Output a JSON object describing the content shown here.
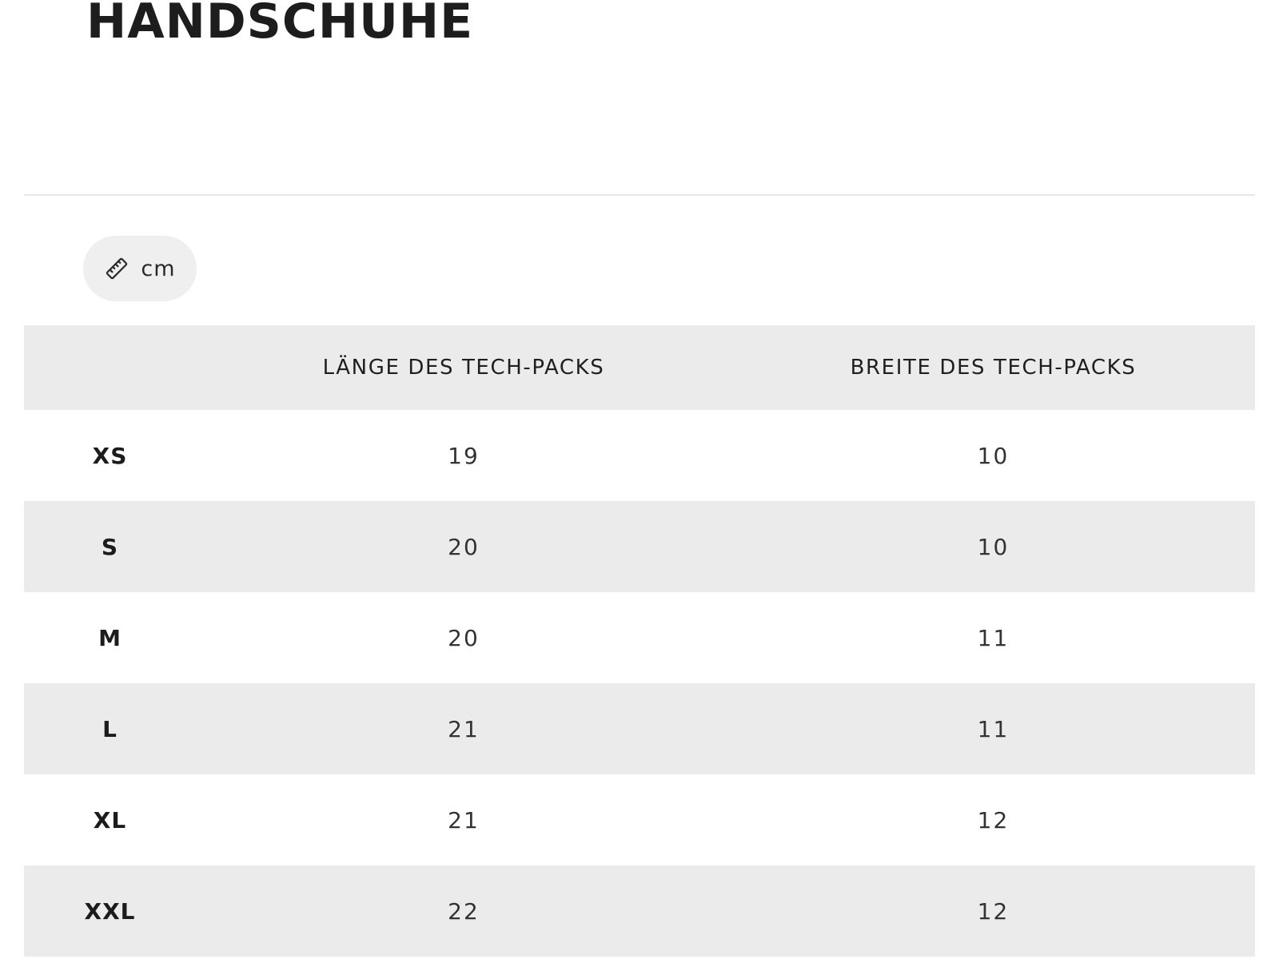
{
  "page": {
    "title": "HANDSCHUHE"
  },
  "unit_toggle": {
    "icon": "ruler-icon",
    "label": "cm"
  },
  "size_table": {
    "headers": [
      "",
      "LÄNGE DES TECH-PACKS",
      "BREITE DES TECH-PACKS"
    ],
    "rows": [
      {
        "size": "XS",
        "length": "19",
        "width": "10"
      },
      {
        "size": "S",
        "length": "20",
        "width": "10"
      },
      {
        "size": "M",
        "length": "20",
        "width": "11"
      },
      {
        "size": "L",
        "length": "21",
        "width": "11"
      },
      {
        "size": "XL",
        "length": "21",
        "width": "12"
      },
      {
        "size": "XXL",
        "length": "22",
        "width": "12"
      }
    ]
  },
  "colors": {
    "text": "#1e1e1e",
    "row_shade": "#ebebeb",
    "toggle_bg": "#efefef",
    "divider": "#e6e6e6"
  }
}
